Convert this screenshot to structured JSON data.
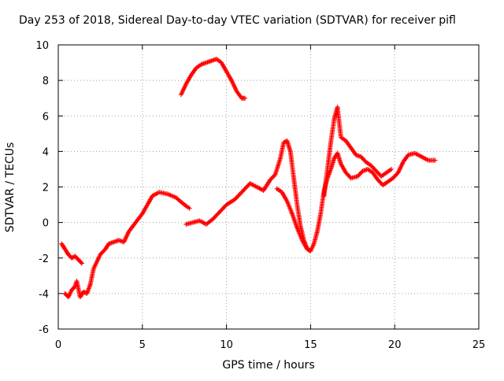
{
  "chart_data": {
    "type": "scatter",
    "title": "Day 253 of 2018, Sidereal Day-to-day VTEC variation (SDTVAR) for receiver pifl",
    "xlabel": "GPS time / hours",
    "ylabel": "SDTVAR / TECUs",
    "xlim": [
      0,
      25
    ],
    "ylim": [
      -6,
      10
    ],
    "xticks": [
      "0",
      "5",
      "10",
      "15",
      "20",
      "25"
    ],
    "yticks": [
      "-6",
      "-4",
      "-2",
      "0",
      "2",
      "4",
      "6",
      "8",
      "10"
    ],
    "grid": true,
    "marker": "+",
    "color": "#ff0000",
    "series": [
      {
        "values": [
          [
            0.2,
            -1.2
          ],
          [
            0.4,
            -1.5
          ],
          [
            0.6,
            -1.8
          ],
          [
            0.8,
            -2.0
          ],
          [
            1.0,
            -1.9
          ],
          [
            1.2,
            -2.1
          ],
          [
            1.4,
            -2.3
          ]
        ]
      },
      {
        "values": [
          [
            0.4,
            -4.0
          ],
          [
            0.6,
            -4.2
          ],
          [
            0.8,
            -3.8
          ],
          [
            1.0,
            -3.6
          ],
          [
            1.1,
            -3.3
          ],
          [
            1.3,
            -4.2
          ],
          [
            1.5,
            -3.9
          ],
          [
            1.7,
            -4.0
          ],
          [
            1.9,
            -3.5
          ],
          [
            2.1,
            -2.6
          ],
          [
            2.3,
            -2.2
          ],
          [
            2.5,
            -1.8
          ],
          [
            2.8,
            -1.5
          ],
          [
            3.0,
            -1.2
          ],
          [
            3.3,
            -1.1
          ],
          [
            3.6,
            -1.0
          ],
          [
            3.9,
            -1.1
          ],
          [
            4.2,
            -0.5
          ],
          [
            4.6,
            0.0
          ],
          [
            5.0,
            0.5
          ],
          [
            5.3,
            1.0
          ],
          [
            5.6,
            1.5
          ],
          [
            6.0,
            1.7
          ],
          [
            6.5,
            1.6
          ],
          [
            7.0,
            1.4
          ],
          [
            7.5,
            1.0
          ],
          [
            7.8,
            0.8
          ]
        ]
      },
      {
        "values": [
          [
            7.3,
            7.2
          ],
          [
            7.6,
            7.8
          ],
          [
            7.9,
            8.3
          ],
          [
            8.2,
            8.7
          ],
          [
            8.5,
            8.9
          ],
          [
            8.8,
            9.0
          ],
          [
            9.1,
            9.1
          ],
          [
            9.4,
            9.2
          ],
          [
            9.7,
            9.0
          ],
          [
            10.0,
            8.5
          ],
          [
            10.3,
            8.0
          ],
          [
            10.6,
            7.4
          ],
          [
            10.9,
            7.0
          ],
          [
            11.1,
            7.0
          ]
        ]
      },
      {
        "values": [
          [
            7.6,
            -0.1
          ],
          [
            8.0,
            0.0
          ],
          [
            8.4,
            0.1
          ],
          [
            8.8,
            -0.1
          ],
          [
            9.2,
            0.2
          ],
          [
            9.6,
            0.6
          ],
          [
            10.0,
            1.0
          ],
          [
            10.5,
            1.3
          ],
          [
            11.0,
            1.8
          ],
          [
            11.4,
            2.2
          ],
          [
            11.8,
            2.0
          ],
          [
            12.2,
            1.8
          ],
          [
            12.6,
            2.4
          ],
          [
            12.9,
            2.7
          ],
          [
            13.2,
            3.6
          ],
          [
            13.4,
            4.5
          ],
          [
            13.6,
            4.6
          ],
          [
            13.8,
            4.0
          ],
          [
            14.0,
            2.5
          ],
          [
            14.2,
            1.0
          ],
          [
            14.4,
            -0.2
          ],
          [
            14.6,
            -1.0
          ],
          [
            14.8,
            -1.5
          ],
          [
            15.0,
            -1.6
          ],
          [
            15.2,
            -1.2
          ],
          [
            15.4,
            -0.5
          ],
          [
            15.6,
            0.5
          ],
          [
            15.8,
            1.8
          ],
          [
            16.0,
            2.5
          ],
          [
            16.2,
            3.0
          ],
          [
            16.4,
            3.6
          ],
          [
            16.6,
            3.9
          ],
          [
            16.8,
            3.3
          ],
          [
            17.1,
            2.8
          ],
          [
            17.4,
            2.5
          ],
          [
            17.8,
            2.6
          ],
          [
            18.1,
            2.9
          ],
          [
            18.4,
            3.0
          ],
          [
            18.7,
            2.8
          ],
          [
            19.0,
            2.4
          ],
          [
            19.3,
            2.1
          ],
          [
            19.6,
            2.3
          ],
          [
            19.9,
            2.5
          ],
          [
            20.2,
            2.8
          ],
          [
            20.5,
            3.4
          ],
          [
            20.8,
            3.8
          ],
          [
            21.2,
            3.9
          ],
          [
            21.6,
            3.7
          ],
          [
            22.0,
            3.5
          ],
          [
            22.4,
            3.5
          ]
        ]
      },
      {
        "values": [
          [
            13.0,
            1.9
          ],
          [
            13.3,
            1.7
          ],
          [
            13.6,
            1.2
          ],
          [
            13.9,
            0.5
          ],
          [
            14.2,
            -0.3
          ],
          [
            14.5,
            -1.0
          ],
          [
            14.8,
            -1.5
          ],
          [
            15.0,
            -1.6
          ]
        ]
      },
      {
        "values": [
          [
            15.8,
            1.5
          ],
          [
            16.0,
            3.0
          ],
          [
            16.2,
            4.5
          ],
          [
            16.4,
            5.8
          ],
          [
            16.6,
            6.5
          ],
          [
            16.8,
            4.8
          ],
          [
            17.1,
            4.6
          ],
          [
            17.4,
            4.2
          ],
          [
            17.7,
            3.8
          ],
          [
            18.0,
            3.7
          ],
          [
            18.3,
            3.4
          ],
          [
            18.6,
            3.2
          ],
          [
            18.9,
            2.9
          ],
          [
            19.2,
            2.6
          ],
          [
            19.5,
            2.8
          ],
          [
            19.8,
            3.0
          ]
        ]
      }
    ]
  }
}
